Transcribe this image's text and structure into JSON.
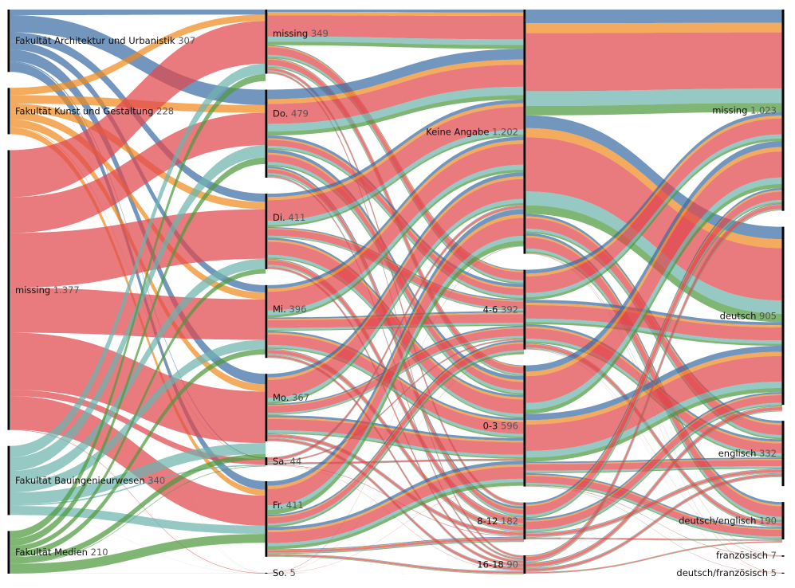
{
  "chart_data": {
    "type": "sankey",
    "title": "",
    "colors": {
      "Fakultät Architektur und Urbanistik": "#3b6ea5",
      "Fakultät Kunst und Gestaltung": "#f08a1e",
      "missing": "#e0474c",
      "Fakultät Bauingenieurwesen": "#6db3ad",
      "Fakultät Medien": "#4e9a3e"
    },
    "axes": [
      {
        "name": "Fakultät",
        "nodes": [
          {
            "label": "Fakultät Architektur und Urbanistik",
            "count": "307",
            "value": 307
          },
          {
            "label": "Fakultät Kunst und Gestaltung",
            "count": "228",
            "value": 228
          },
          {
            "label": "missing",
            "count": "1.377",
            "value": 1377
          },
          {
            "label": "Fakultät Bauingenieurwesen",
            "count": "340",
            "value": 340
          },
          {
            "label": "Fakultät Medien",
            "count": "210",
            "value": 210
          }
        ]
      },
      {
        "name": "Wochentag",
        "nodes": [
          {
            "label": "missing",
            "count": "349",
            "value": 349
          },
          {
            "label": "Do.",
            "count": "479",
            "value": 479
          },
          {
            "label": "Di.",
            "count": "411",
            "value": 411
          },
          {
            "label": "Mi.",
            "count": "396",
            "value": 396
          },
          {
            "label": "Mo.",
            "count": "367",
            "value": 367
          },
          {
            "label": "Sa.",
            "count": "44",
            "value": 44
          },
          {
            "label": "Fr.",
            "count": "411",
            "value": 411
          },
          {
            "label": "So.",
            "count": "5",
            "value": 5
          }
        ]
      },
      {
        "name": "Uhrzeit",
        "nodes": [
          {
            "label": "Keine Angabe",
            "count": "1.202",
            "value": 1202
          },
          {
            "label": "4-6",
            "count": "392",
            "value": 392
          },
          {
            "label": "0-3",
            "count": "596",
            "value": 596
          },
          {
            "label": "8-12",
            "count": "182",
            "value": 182
          },
          {
            "label": "16-18",
            "count": "90",
            "value": 90
          }
        ]
      },
      {
        "name": "Sprache",
        "nodes": [
          {
            "label": "missing",
            "count": "1.023",
            "value": 1023
          },
          {
            "label": "deutsch",
            "count": "905",
            "value": 905
          },
          {
            "label": "englisch",
            "count": "332",
            "value": 332
          },
          {
            "label": "deutsch/englisch",
            "count": "190",
            "value": 190
          },
          {
            "label": "französisch",
            "count": "7",
            "value": 7
          },
          {
            "label": "deutsch/französisch",
            "count": "5",
            "value": 5
          }
        ]
      }
    ]
  }
}
